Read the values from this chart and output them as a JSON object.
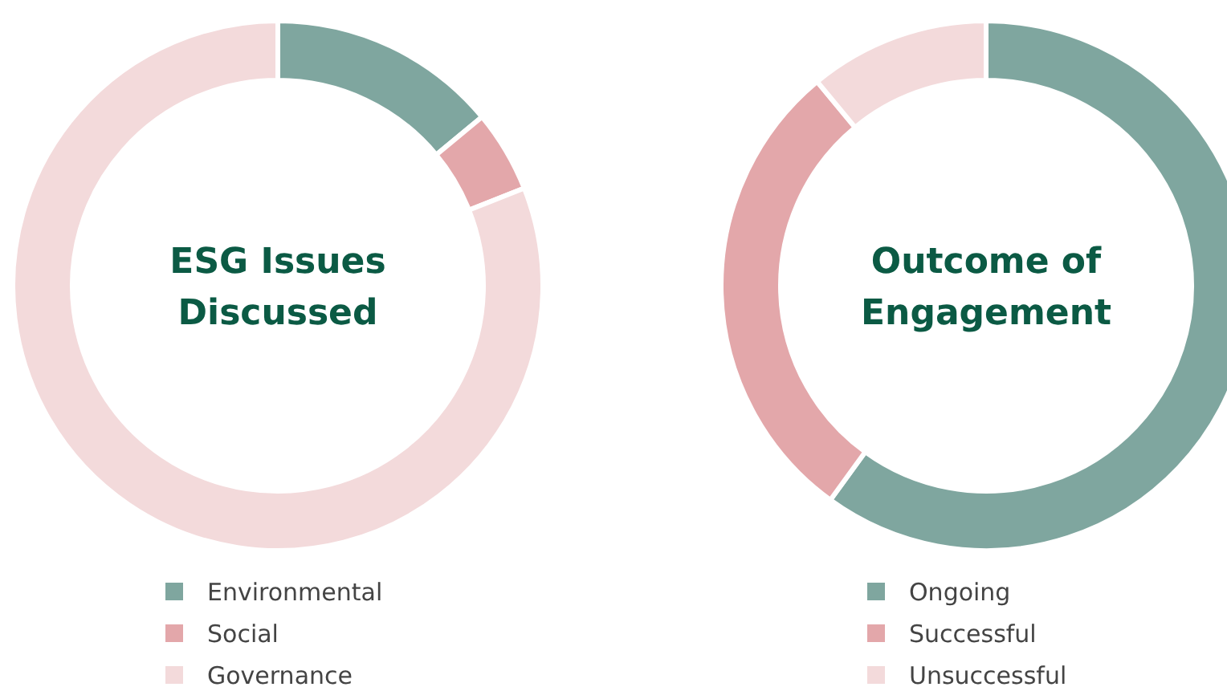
{
  "chart_data": [
    {
      "type": "donut",
      "title": "ESG Issues Discussed",
      "categories": [
        "Environmental",
        "Social",
        "Governance"
      ],
      "values": [
        14,
        5,
        81
      ],
      "colors": [
        "#7fa69f",
        "#e3a7aa",
        "#f3dadb"
      ],
      "legend": "bottom"
    },
    {
      "type": "donut",
      "title": "Outcome of Engagement",
      "categories": [
        "Ongoing",
        "Successful",
        "Unsuccessful"
      ],
      "values": [
        60,
        29,
        11
      ],
      "colors": [
        "#7fa69f",
        "#e3a7aa",
        "#f3dadb"
      ],
      "legend": "bottom"
    }
  ]
}
